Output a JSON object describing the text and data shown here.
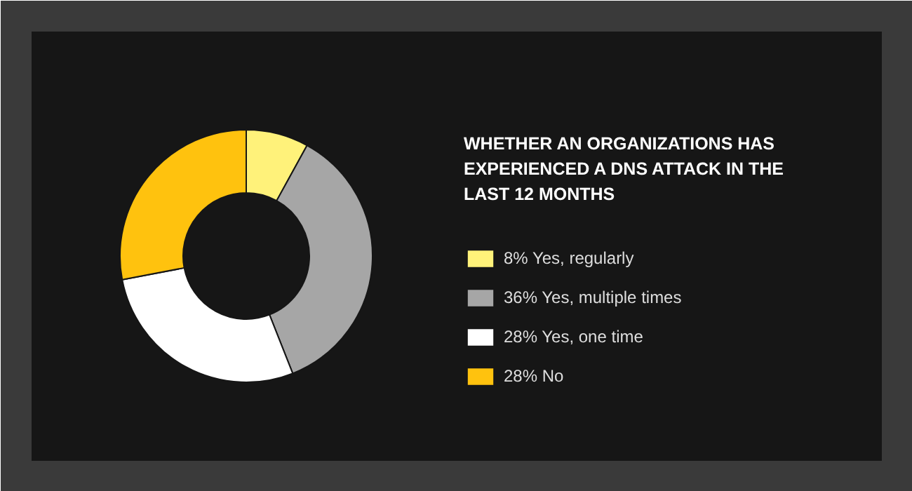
{
  "chart_data": {
    "type": "donut",
    "title": "WHETHER AN ORGANIZATIONS HAS\nEXPERIENCED A DNS ATTACK IN THE\nLAST 12 MONTHS",
    "categories": [
      "Yes, regularly",
      "Yes, multiple times",
      "Yes, one time",
      "No"
    ],
    "values": [
      8,
      36,
      28,
      28
    ],
    "colors": [
      "#fff27a",
      "#a6a6a6",
      "#ffffff",
      "#ffc20e"
    ],
    "value_labels": [
      "8%",
      "36%",
      "28%",
      "28%"
    ],
    "legend": "right"
  }
}
